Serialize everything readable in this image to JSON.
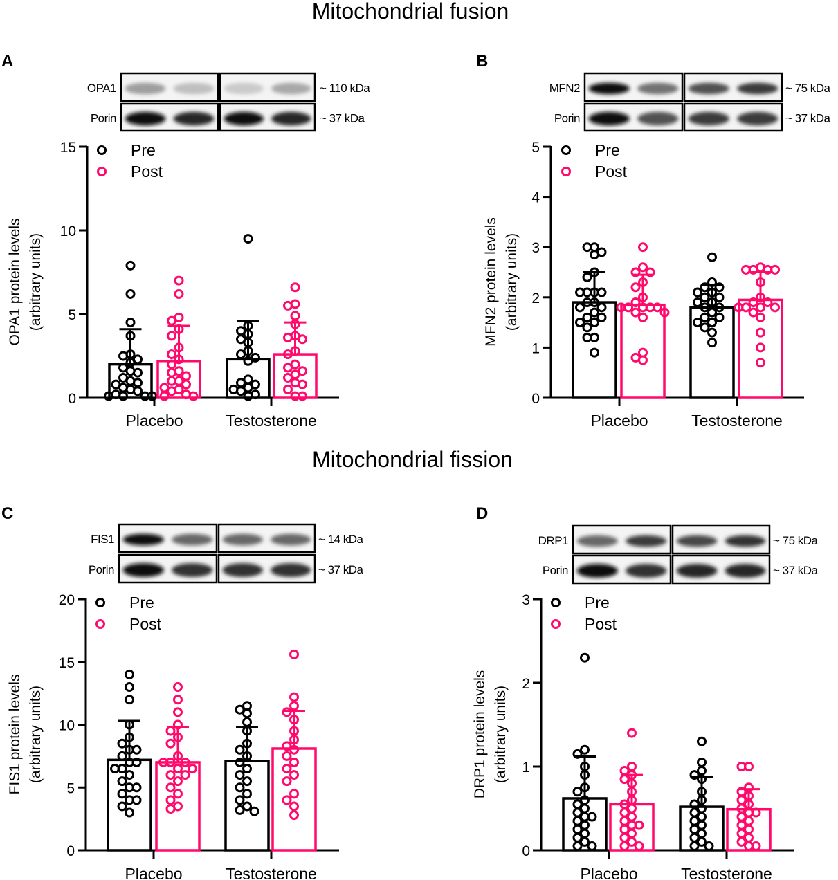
{
  "colors": {
    "pre": "#000000",
    "post": "#ff0a6c"
  },
  "section_titles": [
    "Mitochondrial fusion",
    "Mitochondrial fission"
  ],
  "chart_data": [
    {
      "panel": "A",
      "type": "bar",
      "categories": [
        "Placebo",
        "Testosterone"
      ],
      "ylabel": [
        "OPA1 protein levels",
        "(arbitrary units)"
      ],
      "ylim": [
        0,
        15
      ],
      "yticks": [
        0,
        5,
        10,
        15
      ],
      "legend": [
        "Pre",
        "Post"
      ],
      "legend_position": "top-left",
      "blot": {
        "protein": "OPA1",
        "protein_kda": "~ 110 kDa",
        "loading": "Porin",
        "loading_kda": "~ 37 kDa"
      },
      "series": [
        {
          "name": "Pre",
          "means": [
            2.0,
            2.3
          ],
          "sd_upper": [
            4.1,
            4.6
          ],
          "points": [
            [
              7.9,
              6.2,
              4.5,
              3.7,
              2.6,
              2.5,
              2.3,
              2.1,
              1.8,
              1.6,
              1.5,
              1.2,
              1.0,
              0.9,
              0.8,
              0.6,
              0.5,
              0.4,
              0.2,
              0.1,
              0.1,
              0.1,
              0.1
            ],
            [
              9.5,
              4.3,
              4.0,
              3.8,
              3.5,
              3.3,
              2.8,
              2.6,
              2.4,
              2.2,
              1.1,
              0.9,
              0.8,
              0.6,
              0.5,
              0.4,
              0.2,
              0.1
            ]
          ]
        },
        {
          "name": "Post",
          "means": [
            2.2,
            2.6
          ],
          "sd_upper": [
            4.3,
            4.5
          ],
          "points": [
            [
              7.0,
              6.2,
              4.8,
              4.6,
              4.1,
              3.7,
              3.0,
              2.6,
              2.3,
              2.0,
              1.6,
              1.5,
              1.3,
              1.0,
              1.0,
              0.8,
              0.6,
              0.5,
              0.4,
              0.2,
              0.1,
              0.1
            ],
            [
              6.6,
              5.6,
              5.5,
              4.9,
              4.4,
              3.7,
              3.6,
              3.5,
              2.8,
              2.6,
              2.0,
              1.8,
              1.6,
              1.4,
              1.2,
              0.9,
              0.8,
              0.5,
              0.1,
              0.1
            ]
          ]
        }
      ]
    },
    {
      "panel": "B",
      "type": "bar",
      "categories": [
        "Placebo",
        "Testosterone"
      ],
      "ylabel": [
        "MFN2 protein levels",
        "(arbitrary units)"
      ],
      "ylim": [
        0,
        5
      ],
      "yticks": [
        0,
        1,
        2,
        3,
        4,
        5
      ],
      "legend": [
        "Pre",
        "Post"
      ],
      "legend_position": "top-left",
      "blot": {
        "protein": "MFN2",
        "protein_kda": "~ 75 kDa",
        "loading": "Porin",
        "loading_kda": "~ 37 kDa"
      },
      "series": [
        {
          "name": "Pre",
          "means": [
            1.9,
            1.8
          ],
          "sd_upper": [
            2.5,
            2.25
          ],
          "points": [
            [
              3.0,
              3.0,
              2.9,
              2.85,
              2.5,
              2.4,
              2.1,
              2.1,
              2.1,
              2.1,
              1.9,
              1.9,
              1.8,
              1.8,
              1.7,
              1.6,
              1.6,
              1.5,
              1.5,
              1.4,
              1.2,
              1.2,
              0.9
            ],
            [
              2.8,
              2.3,
              2.2,
              2.2,
              2.1,
              2.1,
              2.0,
              2.0,
              1.9,
              1.9,
              1.8,
              1.8,
              1.7,
              1.6,
              1.6,
              1.5,
              1.5,
              1.4,
              1.3,
              1.1
            ]
          ]
        },
        {
          "name": "Post",
          "means": [
            1.85,
            1.95
          ],
          "sd_upper": [
            2.45,
            2.5
          ],
          "points": [
            [
              3.0,
              2.6,
              2.5,
              2.5,
              2.3,
              2.2,
              2.0,
              1.9,
              1.8,
              1.8,
              1.8,
              1.8,
              1.8,
              1.7,
              1.7,
              1.6,
              0.9,
              0.8,
              0.75
            ],
            [
              2.6,
              2.55,
              2.55,
              2.55,
              2.55,
              2.3,
              2.0,
              1.9,
              1.9,
              1.8,
              1.8,
              1.8,
              1.8,
              1.7,
              1.6,
              1.3,
              1.0,
              0.7
            ]
          ]
        }
      ]
    },
    {
      "panel": "C",
      "type": "bar",
      "categories": [
        "Placebo",
        "Testosterone"
      ],
      "ylabel": [
        "FIS1 protein levels",
        "(arbitrary units)"
      ],
      "ylim": [
        0,
        20
      ],
      "yticks": [
        0,
        5,
        10,
        15,
        20
      ],
      "legend": [
        "Pre",
        "Post"
      ],
      "legend_position": "top-left",
      "blot": {
        "protein": "FIS1",
        "protein_kda": "~ 14 kDa",
        "loading": "Porin",
        "loading_kda": "~ 37 kDa"
      },
      "series": [
        {
          "name": "Pre",
          "means": [
            7.2,
            7.1
          ],
          "sd_upper": [
            10.3,
            9.8
          ],
          "points": [
            [
              14,
              13,
              12,
              10,
              9,
              8.5,
              8,
              8,
              7.5,
              7,
              7,
              6.5,
              6.5,
              6,
              5.5,
              5,
              5,
              4.5,
              4,
              4,
              3.5,
              3
            ],
            [
              11.5,
              11.2,
              10.9,
              10.2,
              9.5,
              8.5,
              8,
              7.5,
              7,
              6.5,
              6,
              5.5,
              5,
              4.5,
              4,
              3.5,
              3.2,
              3.1
            ]
          ]
        },
        {
          "name": "Post",
          "means": [
            7.0,
            8.1
          ],
          "sd_upper": [
            9.8,
            11.1
          ],
          "points": [
            [
              13,
              12,
              11,
              10,
              9.5,
              9,
              8.5,
              7.5,
              7,
              7,
              7,
              6.5,
              6.5,
              6,
              6,
              5.5,
              5,
              4.5,
              4,
              3.5,
              3.3
            ],
            [
              15.6,
              12.2,
              11.5,
              11,
              10.4,
              9.5,
              8.8,
              8.3,
              8,
              7.5,
              7,
              6.5,
              6,
              5.5,
              4.5,
              4,
              3.5,
              2.8
            ]
          ]
        }
      ]
    },
    {
      "panel": "D",
      "type": "bar",
      "categories": [
        "Placebo",
        "Testosterone"
      ],
      "ylabel": [
        "DRP1 protein levels",
        "(arbitrary units)"
      ],
      "ylim": [
        0,
        3
      ],
      "yticks": [
        0,
        1,
        2,
        3
      ],
      "legend": [
        "Pre",
        "Post"
      ],
      "legend_position": "top-left",
      "blot": {
        "protein": "DRP1",
        "protein_kda": "~ 75 kDa",
        "loading": "Porin",
        "loading_kda": "~ 37 kDa"
      },
      "series": [
        {
          "name": "Pre",
          "means": [
            0.62,
            0.52
          ],
          "sd_upper": [
            1.12,
            0.88
          ],
          "points": [
            [
              2.3,
              1.2,
              1.15,
              1.0,
              0.9,
              0.75,
              0.7,
              0.6,
              0.55,
              0.5,
              0.45,
              0.4,
              0.4,
              0.35,
              0.3,
              0.25,
              0.2,
              0.15,
              0.1,
              0.05,
              0.05
            ],
            [
              1.3,
              1.05,
              0.95,
              0.9,
              0.85,
              0.7,
              0.6,
              0.55,
              0.5,
              0.45,
              0.4,
              0.35,
              0.3,
              0.25,
              0.2,
              0.15,
              0.1,
              0.05,
              0.05
            ]
          ]
        },
        {
          "name": "Post",
          "means": [
            0.55,
            0.49
          ],
          "sd_upper": [
            0.9,
            0.73
          ],
          "points": [
            [
              1.4,
              1.0,
              0.95,
              0.9,
              0.85,
              0.8,
              0.7,
              0.6,
              0.55,
              0.5,
              0.45,
              0.4,
              0.35,
              0.3,
              0.3,
              0.25,
              0.2,
              0.15,
              0.1,
              0.05,
              0.05
            ],
            [
              1.0,
              1.0,
              0.75,
              0.7,
              0.65,
              0.6,
              0.55,
              0.5,
              0.45,
              0.45,
              0.4,
              0.35,
              0.3,
              0.25,
              0.2,
              0.15,
              0.1,
              0.05,
              0.05
            ]
          ]
        }
      ]
    }
  ]
}
